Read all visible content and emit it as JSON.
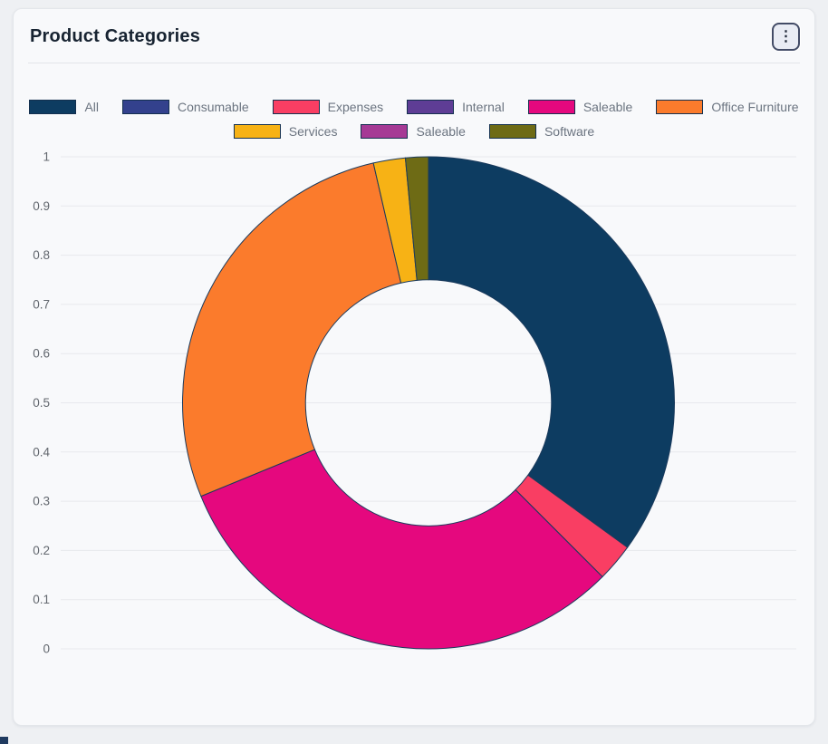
{
  "card": {
    "title": "Product Categories",
    "menu_icon": "kebab-vertical-dots",
    "menu_glyph": "⋮"
  },
  "chart_data": {
    "type": "pie",
    "title": "Product Categories",
    "labels": [
      "All",
      "Consumable",
      "Expenses",
      "Internal",
      "Saleable",
      "Office Furniture",
      "Services",
      "Saleable",
      "Software"
    ],
    "values": [
      0.35,
      0,
      0.025,
      0,
      0.313,
      0.276,
      0.021,
      0,
      0.015
    ],
    "colors": [
      "#0d3c61",
      "#33418d",
      "#f93e63",
      "#5e3d95",
      "#e5087e",
      "#fb7b2c",
      "#f7b215",
      "#a63a95",
      "#6e6b15"
    ],
    "slice_border_color": "#1a3a5c",
    "donut_hole_ratio": 0.5,
    "start_angle_deg": 0,
    "direction": "clockwise",
    "y_ticks": [
      "1",
      "0.9",
      "0.8",
      "0.7",
      "0.6",
      "0.5",
      "0.4",
      "0.3",
      "0.2",
      "0.1",
      "0"
    ],
    "y_range": [
      0,
      1
    ],
    "grid": true,
    "gridline_color": "#e7e9ed",
    "tick_color": "#62676e",
    "legend_position": "top",
    "legend_break_after": 6
  }
}
